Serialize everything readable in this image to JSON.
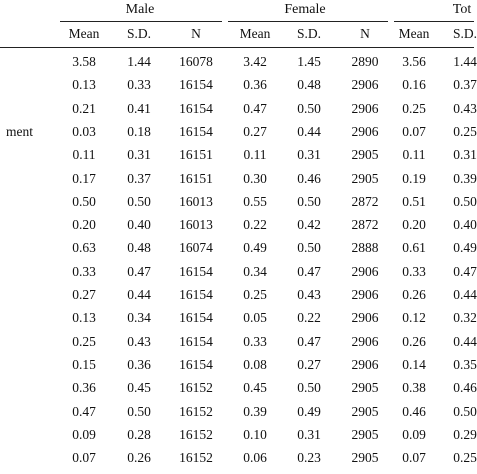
{
  "groups": [
    "Male",
    "Female",
    "Tot"
  ],
  "subheaders": [
    "Mean",
    "S.D.",
    "N",
    "Mean",
    "S.D.",
    "N",
    "Mean",
    "S.D."
  ],
  "row_labels": [
    "",
    "",
    "",
    "ment",
    "",
    "",
    "",
    "",
    "",
    "",
    "",
    "",
    "",
    "",
    "",
    "",
    "",
    ""
  ],
  "rows": [
    [
      "3.58",
      "1.44",
      "16078",
      "3.42",
      "1.45",
      "2890",
      "3.56",
      "1.44"
    ],
    [
      "0.13",
      "0.33",
      "16154",
      "0.36",
      "0.48",
      "2906",
      "0.16",
      "0.37"
    ],
    [
      "0.21",
      "0.41",
      "16154",
      "0.47",
      "0.50",
      "2906",
      "0.25",
      "0.43"
    ],
    [
      "0.03",
      "0.18",
      "16154",
      "0.27",
      "0.44",
      "2906",
      "0.07",
      "0.25"
    ],
    [
      "0.11",
      "0.31",
      "16151",
      "0.11",
      "0.31",
      "2905",
      "0.11",
      "0.31"
    ],
    [
      "0.17",
      "0.37",
      "16151",
      "0.30",
      "0.46",
      "2905",
      "0.19",
      "0.39"
    ],
    [
      "0.50",
      "0.50",
      "16013",
      "0.55",
      "0.50",
      "2872",
      "0.51",
      "0.50"
    ],
    [
      "0.20",
      "0.40",
      "16013",
      "0.22",
      "0.42",
      "2872",
      "0.20",
      "0.40"
    ],
    [
      "0.63",
      "0.48",
      "16074",
      "0.49",
      "0.50",
      "2888",
      "0.61",
      "0.49"
    ],
    [
      "0.33",
      "0.47",
      "16154",
      "0.34",
      "0.47",
      "2906",
      "0.33",
      "0.47"
    ],
    [
      "0.27",
      "0.44",
      "16154",
      "0.25",
      "0.43",
      "2906",
      "0.26",
      "0.44"
    ],
    [
      "0.13",
      "0.34",
      "16154",
      "0.05",
      "0.22",
      "2906",
      "0.12",
      "0.32"
    ],
    [
      "0.25",
      "0.43",
      "16154",
      "0.33",
      "0.47",
      "2906",
      "0.26",
      "0.44"
    ],
    [
      "0.15",
      "0.36",
      "16154",
      "0.08",
      "0.27",
      "2906",
      "0.14",
      "0.35"
    ],
    [
      "0.36",
      "0.45",
      "16152",
      "0.45",
      "0.50",
      "2905",
      "0.38",
      "0.46"
    ],
    [
      "0.47",
      "0.50",
      "16152",
      "0.39",
      "0.49",
      "2905",
      "0.46",
      "0.50"
    ],
    [
      "0.09",
      "0.28",
      "16152",
      "0.10",
      "0.31",
      "2905",
      "0.09",
      "0.29"
    ],
    [
      "0.07",
      "0.26",
      "16152",
      "0.06",
      "0.23",
      "2905",
      "0.07",
      "0.25"
    ]
  ]
}
